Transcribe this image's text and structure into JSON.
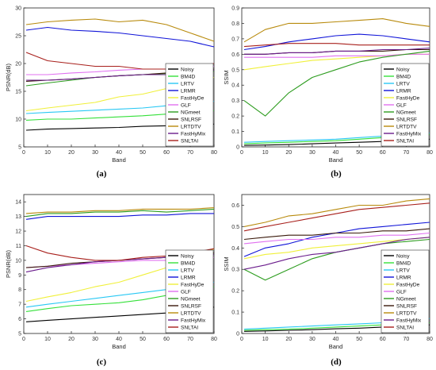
{
  "figure": {
    "legend_entries": [
      {
        "name": "Noisy",
        "color": "#000000"
      },
      {
        "name": "BM4D",
        "color": "#35e03a"
      },
      {
        "name": "LRTV",
        "color": "#29c8f4"
      },
      {
        "name": "LRMR",
        "color": "#1014d8"
      },
      {
        "name": "FastHyDe",
        "color": "#f0f03a"
      },
      {
        "name": "GLF",
        "color": "#e070f0"
      },
      {
        "name": "NGmeet",
        "color": "#2c9c1e"
      },
      {
        "name": "SNLRSF",
        "color": "#3a1a0c"
      },
      {
        "name": "LRTDTV",
        "color": "#b88a0c"
      },
      {
        "name": "FastHyMix",
        "color": "#6a1c8c"
      },
      {
        "name": "SNLTAI",
        "color": "#a8201c"
      }
    ]
  },
  "chart_data": [
    {
      "type": "line",
      "panel_label": "(a)",
      "xlabel": "Band",
      "ylabel": "PSNR(dB)",
      "xlim": [
        0,
        80
      ],
      "ylim": [
        5,
        30
      ],
      "xticks": [
        0,
        10,
        20,
        30,
        40,
        50,
        60,
        70,
        80
      ],
      "yticks": [
        5,
        10,
        15,
        20,
        25,
        30
      ],
      "legend_position": "bottom-right",
      "x": [
        1,
        10,
        20,
        30,
        40,
        50,
        60,
        70,
        80
      ],
      "series": [
        {
          "name": "Noisy",
          "color": "#000000",
          "values": [
            8.0,
            8.2,
            8.3,
            8.4,
            8.5,
            8.7,
            8.8,
            8.9,
            9.1
          ]
        },
        {
          "name": "BM4D",
          "color": "#35e03a",
          "values": [
            9.8,
            10.0,
            10.0,
            10.2,
            10.4,
            10.6,
            10.9,
            11.2,
            11.5
          ]
        },
        {
          "name": "LRTV",
          "color": "#29c8f4",
          "values": [
            11.0,
            11.2,
            11.4,
            11.6,
            11.8,
            12.0,
            12.4,
            12.8,
            13.2
          ]
        },
        {
          "name": "LRMR",
          "color": "#1014d8",
          "values": [
            26.0,
            26.5,
            26.0,
            25.8,
            25.5,
            25.0,
            24.5,
            24.0,
            23.0
          ]
        },
        {
          "name": "FastHyDe",
          "color": "#f0f03a",
          "values": [
            11.5,
            12.0,
            12.5,
            13.0,
            14.0,
            14.5,
            15.5,
            16.5,
            17.5
          ]
        },
        {
          "name": "GLF",
          "color": "#e070f0",
          "values": [
            18.0,
            18.0,
            18.3,
            18.5,
            18.8,
            19.0,
            19.0,
            19.2,
            19.5
          ]
        },
        {
          "name": "NGmeet",
          "color": "#2c9c1e",
          "values": [
            16.0,
            16.5,
            17.0,
            17.5,
            17.8,
            18.0,
            18.2,
            18.5,
            18.6
          ]
        },
        {
          "name": "SNLRSF",
          "color": "#3a1a0c",
          "values": [
            16.8,
            17.0,
            17.2,
            17.5,
            17.8,
            18.0,
            18.3,
            18.6,
            19.0
          ]
        },
        {
          "name": "LRTDTV",
          "color": "#b88a0c",
          "values": [
            27.0,
            27.5,
            27.8,
            28.0,
            27.5,
            27.8,
            27.0,
            25.5,
            24.0
          ]
        },
        {
          "name": "FastHyMix",
          "color": "#6a1c8c",
          "values": [
            17.0,
            17.0,
            17.2,
            17.5,
            17.8,
            18.0,
            18.0,
            18.5,
            18.8
          ]
        },
        {
          "name": "SNLTAI",
          "color": "#a8201c",
          "values": [
            22.0,
            20.5,
            20.0,
            19.5,
            19.5,
            19.0,
            19.0,
            19.5,
            20.0
          ]
        }
      ]
    },
    {
      "type": "line",
      "panel_label": "(b)",
      "xlabel": "Band",
      "ylabel": "SSIM",
      "xlim": [
        0,
        80
      ],
      "ylim": [
        0,
        0.9
      ],
      "xticks": [
        0,
        10,
        20,
        30,
        40,
        50,
        60,
        70,
        80
      ],
      "yticks": [
        0,
        0.1,
        0.2,
        0.3,
        0.4,
        0.5,
        0.6,
        0.7,
        0.8,
        0.9
      ],
      "legend_position": "bottom-right",
      "x": [
        1,
        10,
        20,
        30,
        40,
        50,
        60,
        70,
        80
      ],
      "series": [
        {
          "name": "Noisy",
          "color": "#000000",
          "values": [
            0.01,
            0.012,
            0.015,
            0.02,
            0.025,
            0.03,
            0.035,
            0.04,
            0.05
          ]
        },
        {
          "name": "BM4D",
          "color": "#35e03a",
          "values": [
            0.02,
            0.025,
            0.03,
            0.035,
            0.04,
            0.05,
            0.06,
            0.07,
            0.08
          ]
        },
        {
          "name": "LRTV",
          "color": "#29c8f4",
          "values": [
            0.03,
            0.035,
            0.04,
            0.045,
            0.05,
            0.06,
            0.07,
            0.08,
            0.09
          ]
        },
        {
          "name": "LRMR",
          "color": "#1014d8",
          "values": [
            0.63,
            0.65,
            0.68,
            0.7,
            0.72,
            0.73,
            0.72,
            0.7,
            0.68
          ]
        },
        {
          "name": "FastHyDe",
          "color": "#f0f03a",
          "values": [
            0.5,
            0.52,
            0.54,
            0.56,
            0.57,
            0.58,
            0.59,
            0.6,
            0.6
          ]
        },
        {
          "name": "GLF",
          "color": "#e070f0",
          "values": [
            0.58,
            0.58,
            0.58,
            0.58,
            0.59,
            0.59,
            0.59,
            0.6,
            0.6
          ]
        },
        {
          "name": "NGmeet",
          "color": "#2c9c1e",
          "values": [
            0.3,
            0.2,
            0.35,
            0.45,
            0.5,
            0.55,
            0.58,
            0.6,
            0.62
          ]
        },
        {
          "name": "SNLRSF",
          "color": "#3a1a0c",
          "values": [
            0.6,
            0.6,
            0.61,
            0.61,
            0.62,
            0.62,
            0.62,
            0.63,
            0.63
          ]
        },
        {
          "name": "LRTDTV",
          "color": "#b88a0c",
          "values": [
            0.68,
            0.76,
            0.8,
            0.8,
            0.81,
            0.82,
            0.83,
            0.8,
            0.78
          ]
        },
        {
          "name": "FastHyMix",
          "color": "#6a1c8c",
          "values": [
            0.6,
            0.6,
            0.61,
            0.61,
            0.62,
            0.62,
            0.63,
            0.63,
            0.64
          ]
        },
        {
          "name": "SNLTAI",
          "color": "#a8201c",
          "values": [
            0.65,
            0.66,
            0.67,
            0.67,
            0.67,
            0.66,
            0.66,
            0.66,
            0.66
          ]
        }
      ]
    },
    {
      "type": "line",
      "panel_label": "(c)",
      "xlabel": "Band",
      "ylabel": "PSNR(dB)",
      "xlim": [
        0,
        80
      ],
      "ylim": [
        5,
        14.5
      ],
      "xticks": [
        0,
        10,
        20,
        30,
        40,
        50,
        60,
        70,
        80
      ],
      "yticks": [
        5,
        6,
        7,
        8,
        9,
        10,
        11,
        12,
        13,
        14
      ],
      "legend_position": "bottom-right",
      "x": [
        1,
        10,
        20,
        30,
        40,
        50,
        60,
        70,
        80
      ],
      "series": [
        {
          "name": "Noisy",
          "color": "#000000",
          "values": [
            5.8,
            5.9,
            6.0,
            6.1,
            6.2,
            6.3,
            6.4,
            6.6,
            6.8
          ]
        },
        {
          "name": "BM4D",
          "color": "#35e03a",
          "values": [
            6.5,
            6.7,
            6.9,
            7.0,
            7.1,
            7.3,
            7.6,
            7.9,
            8.2
          ]
        },
        {
          "name": "LRTV",
          "color": "#29c8f4",
          "values": [
            6.8,
            7.0,
            7.2,
            7.4,
            7.6,
            7.8,
            8.0,
            8.2,
            8.5
          ]
        },
        {
          "name": "LRMR",
          "color": "#1014d8",
          "values": [
            12.8,
            13.0,
            13.0,
            13.0,
            13.0,
            13.1,
            13.1,
            13.2,
            13.2
          ]
        },
        {
          "name": "FastHyDe",
          "color": "#f0f03a",
          "values": [
            7.2,
            7.5,
            7.8,
            8.2,
            8.5,
            9.0,
            9.5,
            10.0,
            10.8
          ]
        },
        {
          "name": "GLF",
          "color": "#e070f0",
          "values": [
            9.5,
            9.6,
            9.7,
            9.8,
            9.9,
            10.0,
            10.0,
            10.1,
            10.2
          ]
        },
        {
          "name": "NGmeet",
          "color": "#2c9c1e",
          "values": [
            13.0,
            13.2,
            13.2,
            13.3,
            13.3,
            13.4,
            13.3,
            13.4,
            13.5
          ]
        },
        {
          "name": "SNLRSF",
          "color": "#3a1a0c",
          "values": [
            9.5,
            9.6,
            9.8,
            9.9,
            10.0,
            10.1,
            10.2,
            10.3,
            10.5
          ]
        },
        {
          "name": "LRTDTV",
          "color": "#b88a0c",
          "values": [
            13.2,
            13.3,
            13.3,
            13.4,
            13.4,
            13.5,
            13.5,
            13.5,
            13.6
          ]
        },
        {
          "name": "FastHyMix",
          "color": "#6a1c8c",
          "values": [
            9.2,
            9.5,
            9.7,
            9.9,
            10.0,
            10.1,
            10.2,
            10.3,
            10.4
          ]
        },
        {
          "name": "SNLTAI",
          "color": "#a8201c",
          "values": [
            11.0,
            10.5,
            10.2,
            10.0,
            10.0,
            10.2,
            10.3,
            10.5,
            10.8
          ]
        }
      ]
    },
    {
      "type": "line",
      "panel_label": "(d)",
      "xlabel": "Band",
      "ylabel": "SSIM",
      "xlim": [
        0,
        80
      ],
      "ylim": [
        0,
        0.65
      ],
      "xticks": [
        0,
        10,
        20,
        30,
        40,
        50,
        60,
        70,
        80
      ],
      "yticks": [
        0,
        0.1,
        0.2,
        0.3,
        0.4,
        0.5,
        0.6
      ],
      "legend_position": "bottom-right",
      "x": [
        1,
        10,
        20,
        30,
        40,
        50,
        60,
        70,
        80
      ],
      "series": [
        {
          "name": "Noisy",
          "color": "#000000",
          "values": [
            0.01,
            0.012,
            0.015,
            0.018,
            0.022,
            0.025,
            0.03,
            0.035,
            0.04
          ]
        },
        {
          "name": "BM4D",
          "color": "#35e03a",
          "values": [
            0.015,
            0.018,
            0.02,
            0.025,
            0.03,
            0.035,
            0.04,
            0.045,
            0.05
          ]
        },
        {
          "name": "LRTV",
          "color": "#29c8f4",
          "values": [
            0.02,
            0.025,
            0.03,
            0.035,
            0.04,
            0.045,
            0.05,
            0.06,
            0.07
          ]
        },
        {
          "name": "LRMR",
          "color": "#1014d8",
          "values": [
            0.36,
            0.4,
            0.42,
            0.45,
            0.47,
            0.49,
            0.5,
            0.51,
            0.52
          ]
        },
        {
          "name": "FastHyDe",
          "color": "#f0f03a",
          "values": [
            0.35,
            0.37,
            0.38,
            0.4,
            0.41,
            0.42,
            0.43,
            0.44,
            0.45
          ]
        },
        {
          "name": "GLF",
          "color": "#e070f0",
          "values": [
            0.42,
            0.43,
            0.44,
            0.44,
            0.45,
            0.45,
            0.46,
            0.46,
            0.47
          ]
        },
        {
          "name": "NGmeet",
          "color": "#2c9c1e",
          "values": [
            0.3,
            0.25,
            0.3,
            0.35,
            0.38,
            0.4,
            0.42,
            0.43,
            0.44
          ]
        },
        {
          "name": "SNLRSF",
          "color": "#3a1a0c",
          "values": [
            0.44,
            0.45,
            0.46,
            0.46,
            0.47,
            0.47,
            0.48,
            0.48,
            0.49
          ]
        },
        {
          "name": "LRTDTV",
          "color": "#b88a0c",
          "values": [
            0.5,
            0.52,
            0.55,
            0.56,
            0.58,
            0.6,
            0.6,
            0.62,
            0.63
          ]
        },
        {
          "name": "FastHyMix",
          "color": "#6a1c8c",
          "values": [
            0.3,
            0.32,
            0.35,
            0.37,
            0.38,
            0.4,
            0.42,
            0.44,
            0.45
          ]
        },
        {
          "name": "SNLTAI",
          "color": "#a8201c",
          "values": [
            0.48,
            0.5,
            0.52,
            0.54,
            0.56,
            0.58,
            0.59,
            0.6,
            0.61
          ]
        }
      ]
    }
  ]
}
